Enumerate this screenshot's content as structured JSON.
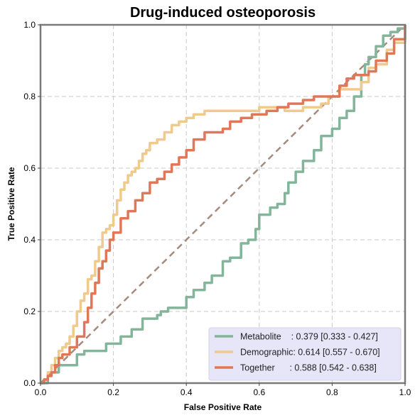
{
  "chart_data": {
    "type": "line",
    "title": "Drug-induced osteoporosis",
    "xlabel": "False Positive Rate",
    "ylabel": "True Positive Rate",
    "xlim": [
      0,
      1
    ],
    "ylim": [
      0,
      1
    ],
    "xticks": [
      "0.0",
      "0.2",
      "0.4",
      "0.6",
      "0.8",
      "1.0"
    ],
    "yticks": [
      "0.0",
      "0.2",
      "0.4",
      "0.6",
      "0.8",
      "1.0"
    ],
    "grid": true,
    "legend_position": "bottom-right",
    "diagonal": {
      "x": [
        0,
        1
      ],
      "y": [
        0,
        1
      ],
      "color": "#a88a7c",
      "style": "dashed"
    },
    "series": [
      {
        "name": "Metabolite",
        "auc_text": "    : 0.379 [0.333 - 0.427]",
        "color": "#82b59a",
        "x": [
          0.0,
          0.02,
          0.03,
          0.05,
          0.08,
          0.1,
          0.12,
          0.15,
          0.18,
          0.2,
          0.22,
          0.25,
          0.28,
          0.3,
          0.32,
          0.33,
          0.35,
          0.38,
          0.4,
          0.42,
          0.45,
          0.47,
          0.5,
          0.52,
          0.55,
          0.57,
          0.59,
          0.6,
          0.62,
          0.63,
          0.65,
          0.67,
          0.68,
          0.7,
          0.72,
          0.75,
          0.77,
          0.8,
          0.82,
          0.84,
          0.86,
          0.88,
          0.89,
          0.9,
          0.92,
          0.94,
          0.96,
          0.98,
          1.0
        ],
        "y": [
          0.0,
          0.02,
          0.03,
          0.05,
          0.05,
          0.08,
          0.09,
          0.09,
          0.11,
          0.11,
          0.13,
          0.15,
          0.18,
          0.18,
          0.19,
          0.2,
          0.21,
          0.21,
          0.24,
          0.26,
          0.28,
          0.3,
          0.34,
          0.35,
          0.39,
          0.4,
          0.43,
          0.47,
          0.47,
          0.49,
          0.5,
          0.53,
          0.56,
          0.59,
          0.62,
          0.65,
          0.69,
          0.71,
          0.74,
          0.76,
          0.8,
          0.86,
          0.89,
          0.91,
          0.94,
          0.97,
          0.98,
          0.99,
          1.0
        ]
      },
      {
        "name": "Demographic",
        "auc_text": ": 0.614 [0.557 - 0.670]",
        "color": "#f0c98c",
        "x": [
          0.0,
          0.01,
          0.02,
          0.03,
          0.04,
          0.05,
          0.06,
          0.07,
          0.08,
          0.09,
          0.1,
          0.11,
          0.12,
          0.13,
          0.14,
          0.15,
          0.16,
          0.17,
          0.18,
          0.19,
          0.2,
          0.21,
          0.22,
          0.23,
          0.24,
          0.25,
          0.26,
          0.27,
          0.28,
          0.29,
          0.3,
          0.32,
          0.34,
          0.36,
          0.38,
          0.4,
          0.42,
          0.45,
          0.48,
          0.5,
          0.52,
          0.55,
          0.58,
          0.6,
          0.62,
          0.65,
          0.67,
          0.7,
          0.72,
          0.75,
          0.77,
          0.79,
          0.8,
          0.82,
          0.85,
          0.88,
          0.9,
          0.92,
          0.95,
          0.97,
          1.0
        ],
        "y": [
          0.0,
          0.01,
          0.03,
          0.05,
          0.07,
          0.09,
          0.1,
          0.11,
          0.13,
          0.16,
          0.2,
          0.23,
          0.25,
          0.29,
          0.3,
          0.34,
          0.38,
          0.42,
          0.43,
          0.44,
          0.47,
          0.51,
          0.54,
          0.56,
          0.58,
          0.59,
          0.6,
          0.62,
          0.64,
          0.65,
          0.67,
          0.68,
          0.7,
          0.72,
          0.73,
          0.74,
          0.75,
          0.76,
          0.76,
          0.76,
          0.76,
          0.76,
          0.76,
          0.77,
          0.77,
          0.77,
          0.76,
          0.76,
          0.77,
          0.77,
          0.78,
          0.8,
          0.8,
          0.82,
          0.82,
          0.84,
          0.88,
          0.89,
          0.93,
          0.95,
          1.0
        ]
      },
      {
        "name": "Together",
        "auc_text": "      : 0.588 [0.542 - 0.638]",
        "color": "#e07858",
        "x": [
          0.0,
          0.01,
          0.02,
          0.03,
          0.04,
          0.05,
          0.06,
          0.08,
          0.1,
          0.12,
          0.13,
          0.14,
          0.15,
          0.16,
          0.17,
          0.18,
          0.19,
          0.2,
          0.22,
          0.24,
          0.26,
          0.28,
          0.3,
          0.32,
          0.34,
          0.36,
          0.38,
          0.4,
          0.42,
          0.45,
          0.48,
          0.5,
          0.52,
          0.55,
          0.58,
          0.6,
          0.62,
          0.65,
          0.68,
          0.7,
          0.72,
          0.75,
          0.78,
          0.8,
          0.82,
          0.84,
          0.86,
          0.88,
          0.9,
          0.92,
          0.95,
          0.97,
          1.0
        ],
        "y": [
          0.0,
          0.01,
          0.02,
          0.03,
          0.05,
          0.07,
          0.08,
          0.1,
          0.13,
          0.17,
          0.21,
          0.25,
          0.28,
          0.32,
          0.34,
          0.37,
          0.4,
          0.42,
          0.46,
          0.48,
          0.51,
          0.53,
          0.56,
          0.57,
          0.59,
          0.61,
          0.63,
          0.65,
          0.68,
          0.7,
          0.7,
          0.71,
          0.73,
          0.74,
          0.75,
          0.75,
          0.76,
          0.77,
          0.78,
          0.78,
          0.79,
          0.8,
          0.8,
          0.8,
          0.83,
          0.85,
          0.86,
          0.86,
          0.87,
          0.9,
          0.92,
          0.96,
          1.0
        ]
      }
    ]
  }
}
